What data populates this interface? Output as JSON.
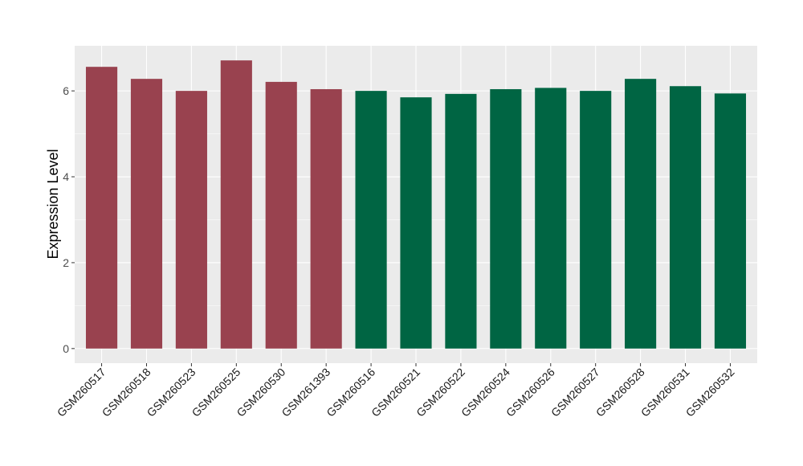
{
  "chart_data": {
    "type": "bar",
    "title": "",
    "xlabel": "",
    "ylabel": "Expression Level",
    "categories": [
      "GSM260517",
      "GSM260518",
      "GSM260523",
      "GSM260525",
      "GSM260530",
      "GSM261393",
      "GSM260516",
      "GSM260521",
      "GSM260522",
      "GSM260524",
      "GSM260526",
      "GSM260527",
      "GSM260528",
      "GSM260531",
      "GSM260532"
    ],
    "values": [
      6.56,
      6.28,
      6.0,
      6.71,
      6.21,
      6.04,
      6.0,
      5.85,
      5.93,
      6.04,
      6.07,
      6.0,
      6.28,
      6.11,
      5.94
    ],
    "groups": [
      "A",
      "A",
      "A",
      "A",
      "A",
      "A",
      "B",
      "B",
      "B",
      "B",
      "B",
      "B",
      "B",
      "B",
      "B"
    ],
    "group_colors": {
      "A": "#99424f",
      "B": "#006543"
    },
    "ylim": [
      -0.34,
      7.05
    ],
    "yticks": [
      0,
      2,
      4,
      6
    ],
    "grid": true,
    "legend": "none"
  }
}
